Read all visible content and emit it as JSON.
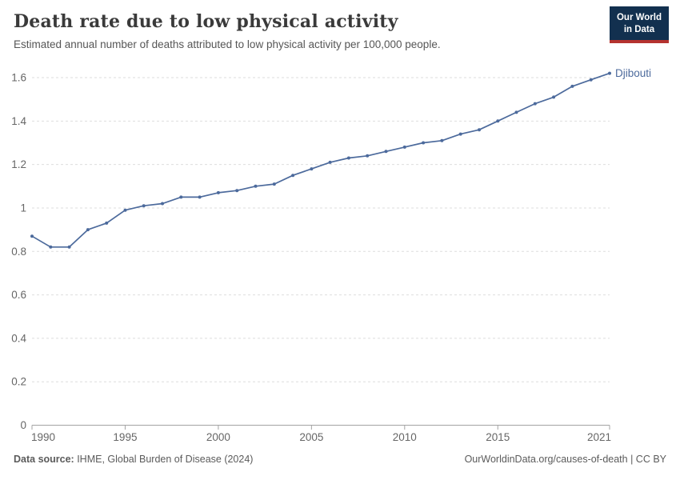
{
  "header": {
    "title": "Death rate due to low physical activity",
    "subtitle": "Estimated annual number of deaths attributed to low physical activity per 100,000 people.",
    "logo": {
      "line1": "Our World",
      "line2": "in Data",
      "bg_color": "#12304f",
      "accent_color": "#b5332f"
    }
  },
  "chart_data": {
    "type": "line",
    "title": "Death rate due to low physical activity",
    "xlabel": "",
    "ylabel": "",
    "x": [
      1990,
      1991,
      1992,
      1993,
      1994,
      1995,
      1996,
      1997,
      1998,
      1999,
      2000,
      2001,
      2002,
      2003,
      2004,
      2005,
      2006,
      2007,
      2008,
      2009,
      2010,
      2011,
      2012,
      2013,
      2014,
      2015,
      2016,
      2017,
      2018,
      2019,
      2020,
      2021
    ],
    "series": [
      {
        "name": "Djibouti",
        "color": "#4c6a9c",
        "values": [
          0.87,
          0.82,
          0.82,
          0.9,
          0.93,
          0.99,
          1.01,
          1.02,
          1.05,
          1.05,
          1.07,
          1.08,
          1.1,
          1.11,
          1.15,
          1.18,
          1.21,
          1.23,
          1.24,
          1.26,
          1.28,
          1.3,
          1.31,
          1.34,
          1.36,
          1.4,
          1.44,
          1.48,
          1.51,
          1.56,
          1.59,
          1.62
        ]
      }
    ],
    "xlim": [
      1990,
      2021
    ],
    "ylim": [
      0,
      1.6
    ],
    "yticks": [
      0,
      0.2,
      0.4,
      0.6,
      0.8,
      1,
      1.2,
      1.4,
      1.6
    ],
    "xticks": [
      1990,
      1995,
      2000,
      2005,
      2010,
      2015,
      2021
    ],
    "grid": "horizontal-dashed",
    "legend_position": "end-of-line-label",
    "entity_label": "Djibouti",
    "axis_color": "#a3a3a3",
    "grid_color": "#dedede",
    "tick_label_color": "#666666"
  },
  "footer": {
    "source_label": "Data source:",
    "source_text": " IHME, Global Burden of Disease (2024)",
    "credit": "OurWorldinData.org/causes-of-death | CC BY"
  }
}
